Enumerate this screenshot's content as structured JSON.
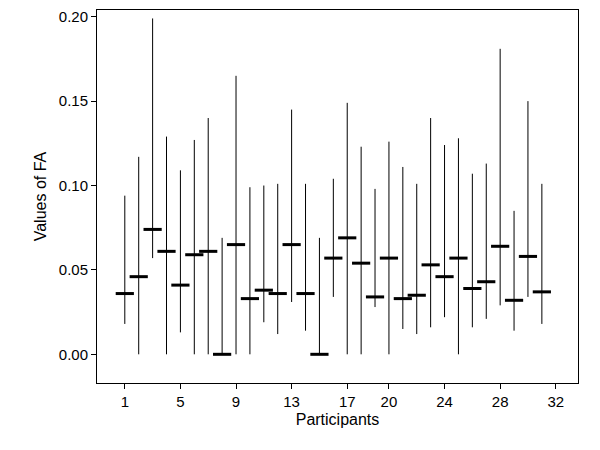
{
  "chart_data": {
    "type": "interval",
    "x_label": "Participants",
    "y_label": "Values of FA",
    "x": [
      1,
      2,
      3,
      4,
      5,
      6,
      7,
      8,
      9,
      10,
      11,
      12,
      13,
      14,
      15,
      16,
      17,
      18,
      19,
      20,
      21,
      22,
      23,
      24,
      25,
      26,
      27,
      28,
      29,
      30,
      31
    ],
    "median": [
      0.036,
      0.046,
      0.074,
      0.061,
      0.041,
      0.059,
      0.061,
      0.0,
      0.065,
      0.033,
      0.038,
      0.036,
      0.065,
      0.036,
      0.0,
      0.057,
      0.069,
      0.054,
      0.034,
      0.057,
      0.033,
      0.035,
      0.053,
      0.046,
      0.057,
      0.039,
      0.043,
      0.064,
      0.032,
      0.058,
      0.037
    ],
    "lower": [
      0.018,
      0.0,
      0.057,
      0.0,
      0.013,
      0.0,
      0.0,
      0.0,
      0.0,
      0.0,
      0.019,
      0.012,
      0.031,
      0.014,
      0.0,
      0.034,
      0.0,
      0.0,
      0.028,
      0.0,
      0.015,
      0.012,
      0.016,
      0.022,
      0.0,
      0.016,
      0.021,
      0.029,
      0.014,
      0.034,
      0.018
    ],
    "upper": [
      0.094,
      0.117,
      0.199,
      0.129,
      0.109,
      0.127,
      0.14,
      0.069,
      0.165,
      0.099,
      0.1,
      0.101,
      0.145,
      0.101,
      0.069,
      0.104,
      0.149,
      0.123,
      0.098,
      0.126,
      0.111,
      0.101,
      0.14,
      0.124,
      0.128,
      0.107,
      0.113,
      0.181,
      0.085,
      0.15,
      0.101
    ],
    "color": "#000000",
    "marker": "line-ew",
    "xlim": [
      -1,
      33.6
    ],
    "xticks": [
      1,
      5,
      9,
      13,
      17,
      20,
      24,
      28,
      32
    ],
    "ylim": [
      -0.017,
      0.204
    ],
    "yticks": [
      {
        "value": 0,
        "label": "0.00"
      },
      {
        "value": 0.05,
        "label": "0.05"
      },
      {
        "value": 0.1,
        "label": "0.10"
      },
      {
        "value": 0.15,
        "label": "0.15"
      },
      {
        "value": 0.2,
        "label": "0.20"
      }
    ],
    "grid": false
  }
}
